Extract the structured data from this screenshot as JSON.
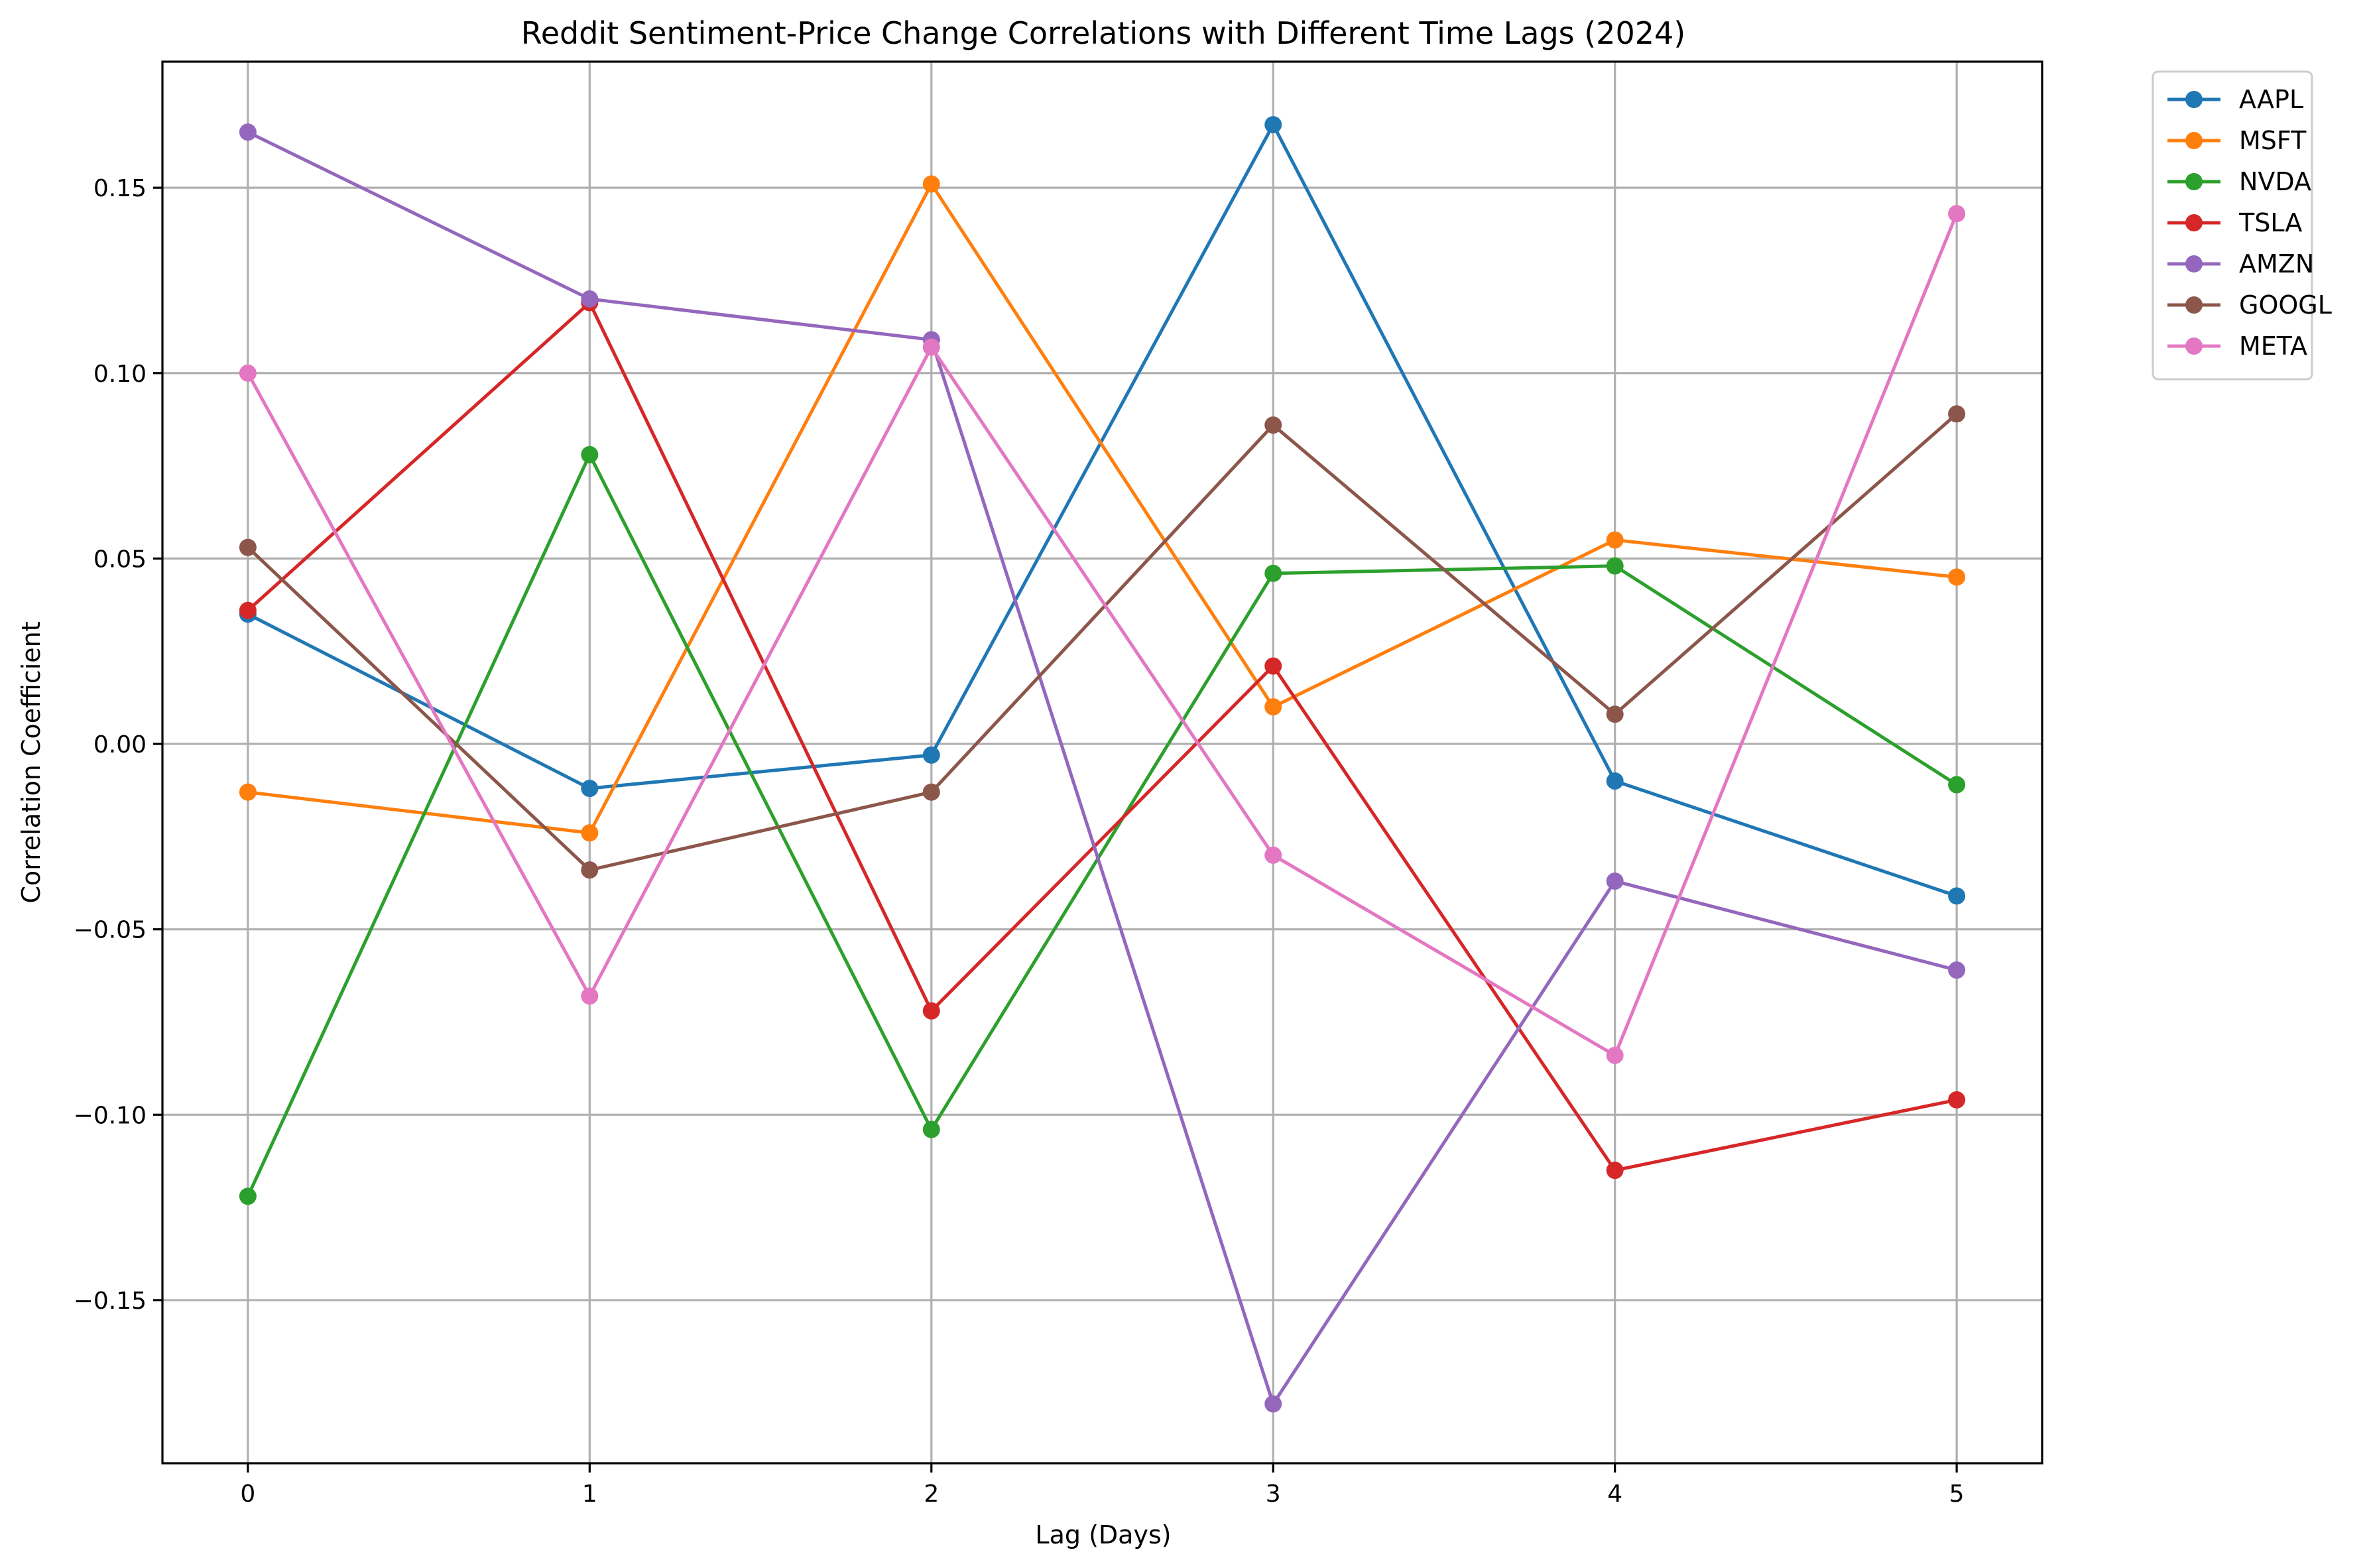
{
  "chart_data": {
    "type": "line",
    "title": "Reddit Sentiment-Price Change Correlations with Different Time Lags (2024)",
    "xlabel": "Lag (Days)",
    "ylabel": "Correlation Coefficient",
    "x": [
      0,
      1,
      2,
      3,
      4,
      5
    ],
    "xlim": [
      -0.25,
      5.25
    ],
    "ylim": [
      -0.194,
      0.184
    ],
    "x_ticks": [
      0,
      1,
      2,
      3,
      4,
      5
    ],
    "x_tick_labels": [
      "0",
      "1",
      "2",
      "3",
      "4",
      "5"
    ],
    "y_ticks": [
      -0.15,
      -0.1,
      -0.05,
      0.0,
      0.05,
      0.1,
      0.15
    ],
    "y_tick_labels": [
      "−0.15",
      "−0.10",
      "−0.05",
      "0.00",
      "0.05",
      "0.10",
      "0.15"
    ],
    "grid": true,
    "legend_position": "outside-top-right",
    "marker": "circle",
    "series": [
      {
        "name": "AAPL",
        "color": "#1f77b4",
        "values": [
          0.035,
          -0.012,
          -0.003,
          0.167,
          -0.01,
          -0.041
        ]
      },
      {
        "name": "MSFT",
        "color": "#ff7f0e",
        "values": [
          -0.013,
          -0.024,
          0.151,
          0.01,
          0.055,
          0.045
        ]
      },
      {
        "name": "NVDA",
        "color": "#2ca02c",
        "values": [
          -0.122,
          0.078,
          -0.104,
          0.046,
          0.048,
          -0.011
        ]
      },
      {
        "name": "TSLA",
        "color": "#d62728",
        "values": [
          0.036,
          0.119,
          -0.072,
          0.021,
          -0.115,
          -0.096
        ]
      },
      {
        "name": "AMZN",
        "color": "#9467bd",
        "values": [
          0.165,
          0.12,
          0.109,
          -0.178,
          -0.037,
          -0.061
        ]
      },
      {
        "name": "GOOGL",
        "color": "#8c564b",
        "values": [
          0.053,
          -0.034,
          -0.013,
          0.086,
          0.008,
          0.089
        ]
      },
      {
        "name": "META",
        "color": "#e377c2",
        "values": [
          0.1,
          -0.068,
          0.107,
          -0.03,
          -0.084,
          0.143
        ]
      }
    ]
  }
}
